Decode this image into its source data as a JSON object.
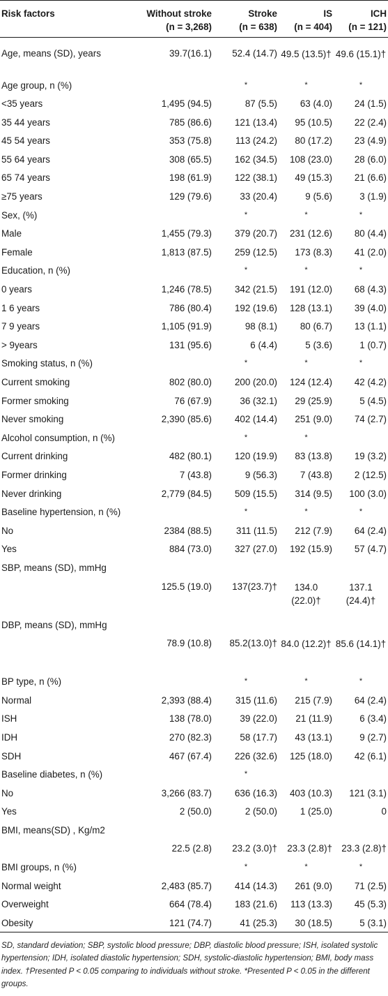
{
  "header": {
    "risk_factors": "Risk factors",
    "col1": "Without stroke",
    "col1_n": "(n = 3,268)",
    "col2": "Stroke",
    "col2_n": "(n = 638)",
    "col3": "IS",
    "col3_n": "(n = 404)",
    "col4": "ICH",
    "col4_n": "(n = 121)"
  },
  "rows": [
    {
      "label": "Age, means (SD), years",
      "c1": "39.7(16.1)",
      "c2": "52.4 (14.7)",
      "c3": "49.5 (13.5)†",
      "c4": "49.6 (15.1)†"
    },
    {
      "label": "Age group, n (%)",
      "c1": "",
      "c2": "*",
      "c3": "*",
      "c4": "*"
    },
    {
      "label": "<35 years",
      "c1": "1,495 (94.5)",
      "c2": "87 (5.5)",
      "c3": "63 (4.0)",
      "c4": "24 (1.5)"
    },
    {
      "label": "35 44 years",
      "c1": "785 (86.6)",
      "c2": "121 (13.4)",
      "c3": "95 (10.5)",
      "c4": "22 (2.4)"
    },
    {
      "label": "45 54 years",
      "c1": "353 (75.8)",
      "c2": "113 (24.2)",
      "c3": "80 (17.2)",
      "c4": "23 (4.9)"
    },
    {
      "label": "55 64 years",
      "c1": "308 (65.5)",
      "c2": "162 (34.5)",
      "c3": "108 (23.0)",
      "c4": "28 (6.0)"
    },
    {
      "label": "65 74 years",
      "c1": "198 (61.9)",
      "c2": "122 (38.1)",
      "c3": "49 (15.3)",
      "c4": "21 (6.6)"
    },
    {
      "label": "≥75 years",
      "c1": "129 (79.6)",
      "c2": "33 (20.4)",
      "c3": "9 (5.6)",
      "c4": "3 (1.9)"
    },
    {
      "label": "Sex, (%)",
      "c1": "",
      "c2": "*",
      "c3": "*",
      "c4": "*"
    },
    {
      "label": "Male",
      "c1": "1,455 (79.3)",
      "c2": "379 (20.7)",
      "c3": "231 (12.6)",
      "c4": "80 (4.4)"
    },
    {
      "label": "Female",
      "c1": "1,813 (87.5)",
      "c2": "259 (12.5)",
      "c3": "173 (8.3)",
      "c4": "41 (2.0)"
    },
    {
      "label": "Education, n (%)",
      "c1": "",
      "c2": "*",
      "c3": "*",
      "c4": "*"
    },
    {
      "label": "0 years",
      "c1": "1,246 (78.5)",
      "c2": "342 (21.5)",
      "c3": "191 (12.0)",
      "c4": "68 (4.3)"
    },
    {
      "label": "1 6 years",
      "c1": "786 (80.4)",
      "c2": "192 (19.6)",
      "c3": "128 (13.1)",
      "c4": "39 (4.0)"
    },
    {
      "label": "7 9 years",
      "c1": "1,105 (91.9)",
      "c2": "98 (8.1)",
      "c3": "80 (6.7)",
      "c4": "13 (1.1)"
    },
    {
      "label": "> 9years",
      "c1": "131 (95.6)",
      "c2": "6 (4.4)",
      "c3": "5 (3.6)",
      "c4": "1 (0.7)"
    },
    {
      "label": "Smoking status, n (%)",
      "c1": "",
      "c2": "*",
      "c3": "*",
      "c4": "*"
    },
    {
      "label": "Current smoking",
      "c1": "802 (80.0)",
      "c2": "200 (20.0)",
      "c3": "124 (12.4)",
      "c4": "42 (4.2)"
    },
    {
      "label": "Former smoking",
      "c1": "76 (67.9)",
      "c2": "36 (32.1)",
      "c3": "29 (25.9)",
      "c4": "5 (4.5)"
    },
    {
      "label": "Never smoking",
      "c1": "2,390 (85.6)",
      "c2": "402 (14.4)",
      "c3": "251 (9.0)",
      "c4": "74 (2.7)"
    },
    {
      "label": "Alcohol consumption, n (%)",
      "c1": "",
      "c2": "*",
      "c3": "*",
      "c4": ""
    },
    {
      "label": "Current drinking",
      "c1": "482 (80.1)",
      "c2": "120 (19.9)",
      "c3": "83 (13.8)",
      "c4": "19 (3.2)"
    },
    {
      "label": "Former drinking",
      "c1": "7 (43.8)",
      "c2": "9 (56.3)",
      "c3": "7 (43.8)",
      "c4": "2 (12.5)"
    },
    {
      "label": "Never drinking",
      "c1": "2,779 (84.5)",
      "c2": "509 (15.5)",
      "c3": "314 (9.5)",
      "c4": "100 (3.0)"
    },
    {
      "label": "Baseline hypertension, n (%)",
      "c1": "",
      "c2": "*",
      "c3": "*",
      "c4": "*"
    },
    {
      "label": "No",
      "c1": "2384 (88.5)",
      "c2": "311 (11.5)",
      "c3": "212 (7.9)",
      "c4": "64 (2.4)"
    },
    {
      "label": "Yes",
      "c1": "884 (73.0)",
      "c2": "327 (27.0)",
      "c3": "192 (15.9)",
      "c4": "57 (4.7)"
    },
    {
      "label": "SBP, means (SD), mmHg",
      "c1": "",
      "c2": "",
      "c3": "",
      "c4": ""
    },
    {
      "label": "",
      "c1": "125.5 (19.0)",
      "c2": "137(23.7)†",
      "c3": "134.0 (22.0)†",
      "c4": "137.1 (24.4)†"
    },
    {
      "label": "DBP, means (SD), mmHg",
      "c1": "",
      "c2": "",
      "c3": "",
      "c4": ""
    },
    {
      "label": "",
      "c1": "78.9 (10.8)",
      "c2": "85.2(13.0)†",
      "c3": "84.0 (12.2)†",
      "c4": "85.6 (14.1)†"
    },
    {
      "label": "BP type, n (%)",
      "c1": "",
      "c2": "*",
      "c3": "*",
      "c4": "*"
    },
    {
      "label": "Normal",
      "c1": "2,393 (88.4)",
      "c2": "315 (11.6)",
      "c3": "215 (7.9)",
      "c4": "64 (2.4)"
    },
    {
      "label": "ISH",
      "c1": "138 (78.0)",
      "c2": "39 (22.0)",
      "c3": "21 (11.9)",
      "c4": "6 (3.4)"
    },
    {
      "label": "IDH",
      "c1": "270 (82.3)",
      "c2": "58 (17.7)",
      "c3": "43 (13.1)",
      "c4": "9 (2.7)"
    },
    {
      "label": "SDH",
      "c1": "467 (67.4)",
      "c2": "226 (32.6)",
      "c3": "125 (18.0)",
      "c4": "42 (6.1)"
    },
    {
      "label": "Baseline diabetes, n (%)",
      "c1": "",
      "c2": "*",
      "c3": "",
      "c4": ""
    },
    {
      "label": "No",
      "c1": "3,266 (83.7)",
      "c2": "636 (16.3)",
      "c3": "403 (10.3)",
      "c4": "121 (3.1)"
    },
    {
      "label": "Yes",
      "c1": "2 (50.0)",
      "c2": "2 (50.0)",
      "c3": "1 (25.0)",
      "c4": "0"
    },
    {
      "label": "BMI, means(SD) , Kg/m2",
      "c1": "",
      "c2": "",
      "c3": "",
      "c4": ""
    },
    {
      "label": "",
      "c1": "22.5 (2.8)",
      "c2": "23.2 (3.0)†",
      "c3": "23.3 (2.8)†",
      "c4": "23.3 (2.8)†"
    },
    {
      "label": "BMI groups, n (%)",
      "c1": "",
      "c2": "*",
      "c3": "*",
      "c4": "*"
    },
    {
      "label": "Normal weight",
      "c1": "2,483 (85.7)",
      "c2": "414 (14.3)",
      "c3": "261 (9.0)",
      "c4": "71 (2.5)"
    },
    {
      "label": "Overweight",
      "c1": "664 (78.4)",
      "c2": "183 (21.6)",
      "c3": "113 (13.3)",
      "c4": "45 (5.3)"
    },
    {
      "label": "Obesity",
      "c1": "121 (74.7)",
      "c2": "41 (25.3)",
      "c3": "30 (18.5)",
      "c4": "5 (3.1)"
    }
  ],
  "footnote": "SD, standard deviation; SBP, systolic blood pressure; DBP, diastolic blood pressure; ISH, isolated systolic hypertension; IDH, isolated diastolic hypertension; SDH, systolic-diastolic hypertension; BMI, body mass index. †Presented P < 0.05 comparing to individuals without stroke. *Presented P < 0.05 in the different groups."
}
